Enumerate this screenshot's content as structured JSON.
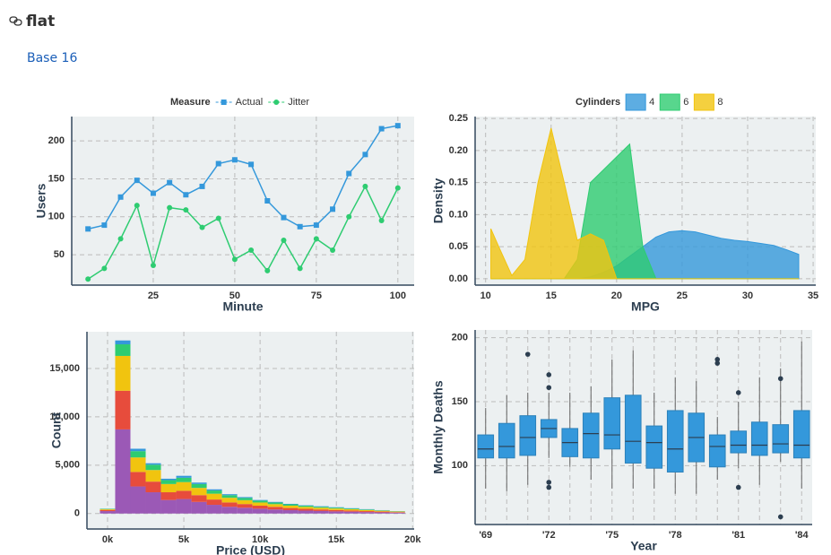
{
  "header": {
    "title": "flat",
    "link": "Base 16"
  },
  "chart_data": [
    {
      "type": "line",
      "x_label": "Minute",
      "y_label": "Users",
      "legend_title": "Measure",
      "x": [
        5,
        10,
        15,
        20,
        25,
        30,
        35,
        40,
        45,
        50,
        55,
        60,
        65,
        70,
        75,
        80,
        85,
        90,
        95,
        100
      ],
      "series": [
        {
          "name": "Actual",
          "color": "#3498db",
          "marker": "square",
          "values": [
            84,
            89,
            126,
            148,
            131,
            145,
            129,
            140,
            170,
            175,
            169,
            121,
            99,
            87,
            89,
            110,
            157,
            182,
            216,
            220
          ]
        },
        {
          "name": "Jitter",
          "color": "#2ecc71",
          "marker": "circle",
          "values": [
            18,
            32,
            71,
            115,
            36,
            112,
            109,
            86,
            98,
            44,
            56,
            29,
            69,
            32,
            71,
            56,
            100,
            140,
            95,
            138
          ]
        }
      ],
      "xlim": [
        0,
        105
      ],
      "xticks": [
        25,
        50,
        75,
        100
      ],
      "ylim": [
        10,
        232
      ],
      "yticks": [
        50,
        100,
        150,
        200
      ],
      "grid": true
    },
    {
      "type": "area",
      "x_label": "MPG",
      "y_label": "Density",
      "legend_title": "Cylinders",
      "x": [
        10.4,
        11,
        12,
        13,
        14,
        15,
        16,
        17,
        18,
        19,
        20,
        21,
        22,
        23,
        24,
        25,
        26,
        27,
        28,
        29,
        30,
        31,
        32,
        33,
        33.9
      ],
      "series": [
        {
          "name": "4",
          "color": "#3498db",
          "values": [
            0,
            0,
            0,
            0,
            0,
            0,
            0,
            0,
            0.003,
            0.01,
            0.02,
            0.035,
            0.05,
            0.065,
            0.073,
            0.075,
            0.073,
            0.068,
            0.063,
            0.06,
            0.058,
            0.055,
            0.052,
            0.045,
            0.038
          ]
        },
        {
          "name": "6",
          "color": "#2ecc71",
          "values": [
            0,
            0,
            0,
            0,
            0,
            0,
            0,
            0.03,
            0.15,
            0.17,
            0.19,
            0.21,
            0.05,
            0,
            0,
            0,
            0,
            0,
            0,
            0,
            0,
            0,
            0,
            0,
            0
          ]
        },
        {
          "name": "8",
          "color": "#f1c40f",
          "values": [
            0.078,
            0.05,
            0.005,
            0.03,
            0.15,
            0.235,
            0.15,
            0.06,
            0.07,
            0.06,
            0,
            0,
            0,
            0,
            0,
            0,
            0,
            0,
            0,
            0,
            0,
            0,
            0,
            0,
            0
          ]
        }
      ],
      "xlim": [
        9.2,
        35.2
      ],
      "xticks": [
        10,
        15,
        20,
        25,
        30,
        35
      ],
      "ylim": [
        -0.01,
        0.253
      ],
      "yticks": [
        {
          "value": 0,
          "label": "0.00"
        },
        0.05,
        {
          "value": 0.1,
          "label": "0.10"
        },
        0.15,
        {
          "value": 0.2,
          "label": "0.20"
        },
        0.25
      ],
      "grid": true
    },
    {
      "type": "histogram",
      "x_label": "Price (USD)",
      "y_label": "Count",
      "bins": [
        -500,
        500,
        1500,
        2500,
        3500,
        4500,
        5500,
        6500,
        7500,
        8500,
        9500,
        10500,
        11500,
        12500,
        13500,
        14500,
        15500,
        16500,
        17500,
        18500,
        19500
      ],
      "series": [
        {
          "color": "#9b59b6",
          "values": [
            250,
            8700,
            2800,
            2200,
            1400,
            1500,
            1200,
            900,
            700,
            600,
            500,
            420,
            350,
            300,
            260,
            220,
            190,
            150,
            120,
            90
          ]
        },
        {
          "color": "#e74c3c",
          "values": [
            120,
            4000,
            1500,
            1100,
            800,
            850,
            700,
            550,
            450,
            380,
            310,
            270,
            220,
            190,
            160,
            140,
            120,
            100,
            80,
            55
          ]
        },
        {
          "color": "#f1c40f",
          "values": [
            80,
            3600,
            1500,
            1200,
            850,
            900,
            750,
            600,
            480,
            400,
            330,
            280,
            240,
            200,
            180,
            160,
            130,
            110,
            85,
            60
          ]
        },
        {
          "color": "#2ecc71",
          "values": [
            40,
            1200,
            650,
            550,
            400,
            450,
            400,
            330,
            270,
            230,
            190,
            170,
            140,
            120,
            100,
            90,
            75,
            60,
            45,
            30
          ]
        },
        {
          "color": "#3498db",
          "values": [
            10,
            400,
            250,
            150,
            150,
            200,
            150,
            120,
            100,
            90,
            70,
            60,
            50,
            40,
            50,
            40,
            35,
            30,
            20,
            15
          ]
        }
      ],
      "xlim": [
        -1350,
        20100
      ],
      "xticks": [
        {
          "value": 0,
          "label": "0k"
        },
        {
          "value": 5000,
          "label": "5k"
        },
        {
          "value": 10000,
          "label": "10k"
        },
        {
          "value": 15000,
          "label": "15k"
        },
        {
          "value": 20000,
          "label": "20k"
        }
      ],
      "ylim": [
        -1600,
        18800
      ],
      "yticks": [
        0,
        {
          "value": 5000,
          "label": "5,000"
        },
        {
          "value": 10000,
          "label": "10,000"
        },
        {
          "value": 15000,
          "label": "15,000"
        }
      ],
      "grid": true
    },
    {
      "type": "box",
      "x_label": "Year",
      "y_label": "Monthly Deaths",
      "color": "#3498db",
      "categories": [
        "'69",
        null,
        null,
        "'72",
        null,
        null,
        "'75",
        null,
        null,
        "'78",
        null,
        null,
        "'81",
        null,
        null,
        "'84"
      ],
      "q1": [
        106,
        106,
        108,
        122,
        107,
        106,
        113,
        102,
        98,
        95,
        103,
        99,
        110,
        108,
        110,
        106
      ],
      "median": [
        113,
        115,
        122,
        129,
        118,
        125,
        124,
        119,
        118,
        113,
        122,
        115,
        116,
        116,
        117,
        116
      ],
      "q3": [
        124,
        133,
        139,
        136,
        129,
        141,
        153,
        155,
        131,
        143,
        141,
        124,
        127,
        134,
        132,
        143
      ],
      "whislo": [
        82,
        80,
        85,
        106,
        99,
        89,
        82,
        82,
        82,
        78,
        78,
        89,
        98,
        85,
        103,
        82
      ],
      "whishi": [
        145,
        155,
        157,
        157,
        157,
        162,
        183,
        190,
        157,
        169,
        166,
        138,
        150,
        169,
        176,
        197
      ],
      "outliers": [
        [],
        [],
        [
          187
        ],
        [
          171,
          161,
          87,
          83
        ],
        [],
        [],
        [],
        [],
        [],
        [],
        [],
        [
          183,
          180
        ],
        [
          157,
          83
        ],
        [],
        [
          168,
          60
        ],
        []
      ],
      "ylim": [
        54,
        206
      ],
      "yticks": [
        100,
        150,
        200
      ],
      "grid": true
    }
  ]
}
